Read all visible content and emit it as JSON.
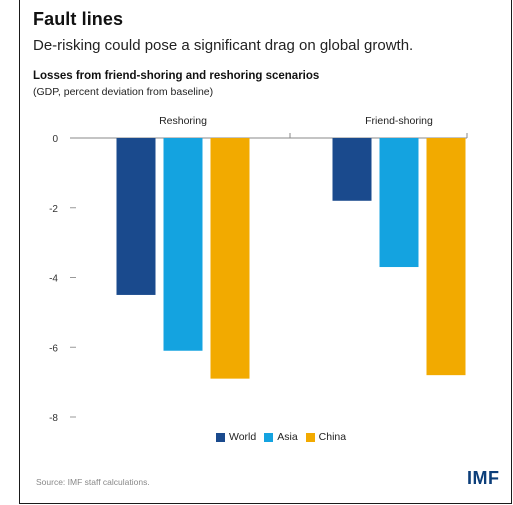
{
  "header": {
    "title": "Fault lines",
    "subtitle": "De-risking could pose a significant drag on global growth."
  },
  "chart_data": {
    "type": "bar",
    "title": "Losses from friend-shoring and reshoring scenarios",
    "subtitle": "(GDP, percent deviation from baseline)",
    "categories": [
      "Reshoring",
      "Friend-shoring"
    ],
    "series": [
      {
        "name": "World",
        "values": [
          -4.5,
          -1.8
        ],
        "color": "#1a4a8d"
      },
      {
        "name": "Asia",
        "values": [
          -6.1,
          -3.7
        ],
        "color": "#14a3e0"
      },
      {
        "name": "China",
        "values": [
          -6.9,
          -6.8
        ],
        "color": "#f2aa00"
      }
    ],
    "yticks": [
      "0",
      "-2",
      "-4",
      "-6",
      "-8"
    ],
    "ylim": [
      -8,
      0
    ],
    "grid": false,
    "legend_position": "bottom-center"
  },
  "footer": {
    "source": "Source: IMF staff calculations.",
    "logo": "IMF"
  }
}
